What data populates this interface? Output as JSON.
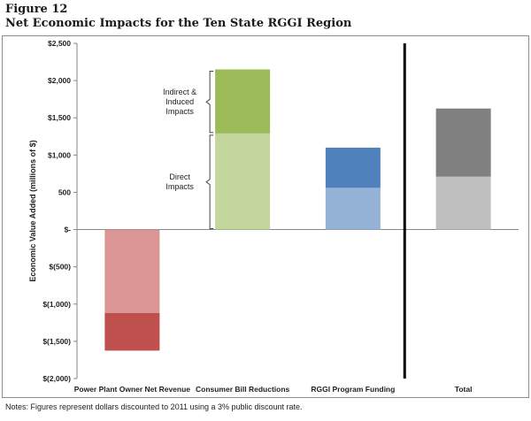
{
  "figure": {
    "label": "Figure 12",
    "title": "Net Economic Impacts for the Ten State RGGI Region"
  },
  "note": "Notes: Figures represent dollars discounted to 2011 using a 3% public discount rate.",
  "chart_data": {
    "type": "bar",
    "stacked": true,
    "title": "Net Economic Impacts for the Ten State RGGI Region",
    "ylabel": "Economic Value Added (millions of $)",
    "xlabel": "",
    "ylim": [
      -2000,
      2500
    ],
    "ytick_values": [
      2500,
      2000,
      1500,
      1000,
      500,
      0,
      -500,
      -1000,
      -1500,
      -2000
    ],
    "ytick_labels": [
      "$2,500",
      "$2,000",
      "$1,500",
      "$1,000",
      "500",
      "$-",
      "$(500)",
      "$(1,000)",
      "$(1,500)",
      "$(2,000)"
    ],
    "categories": [
      "Power Plant Owner Net Revenue",
      "Consumer Bill Reductions",
      "RGGI Program Funding",
      "Total"
    ],
    "series": [
      {
        "component": "direct",
        "values": [
          -1120,
          1290,
          560,
          710
        ],
        "colors": [
          "#d99694",
          "#c3d69b",
          "#95b3d7",
          "#bfbfbf"
        ]
      },
      {
        "component": "indirect_induced",
        "values": [
          -505,
          860,
          540,
          915
        ],
        "colors": [
          "#c0504d",
          "#9bbb59",
          "#4f81bd",
          "#808080"
        ]
      }
    ],
    "annotations": [
      {
        "text": [
          "Indirect &",
          "Induced",
          "Impacts"
        ],
        "category": "Consumer Bill Reductions",
        "range": [
          1290,
          2150
        ]
      },
      {
        "text": [
          "Direct",
          "Impacts"
        ],
        "category": "Consumer Bill Reductions",
        "range": [
          0,
          1290
        ]
      }
    ],
    "divider_after_category": "RGGI Program Funding",
    "grid": false,
    "legend": "none"
  }
}
